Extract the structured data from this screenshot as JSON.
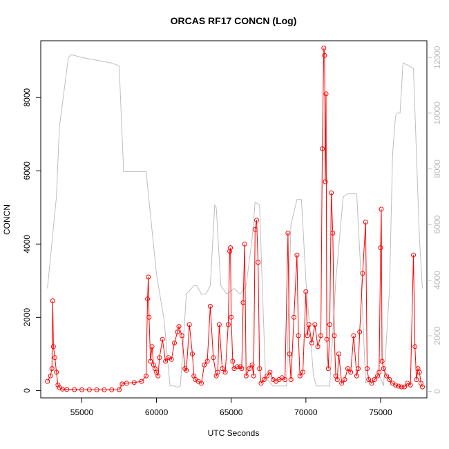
{
  "chart_data": {
    "type": "line",
    "title": "ORCAS RF17 CONCN (Log)",
    "xlabel": "UTC Seconds",
    "ylabel": "CONCN",
    "xlim": [
      52250,
      78100
    ],
    "ylim_left": [
      -200,
      9550
    ],
    "ylim_right": [
      -230,
      12600
    ],
    "x_ticks": [
      55000,
      60000,
      65000,
      70000,
      75000
    ],
    "x_tick_labels": [
      "55000",
      "60000",
      "65000",
      "70000",
      "75000"
    ],
    "y_ticks": [
      0,
      2000,
      4000,
      6000,
      8000
    ],
    "y_tick_labels": [
      "0",
      "2000",
      "4000",
      "6000",
      "8000"
    ],
    "y2_ticks": [
      0,
      2000,
      4000,
      6000,
      8000,
      10000,
      12000
    ],
    "y2_tick_labels": [
      "0",
      "2000",
      "4000",
      "6000",
      "8000",
      "10000",
      "12000"
    ],
    "colors": {
      "concn": "#ff0000",
      "altitude": "#bebebe",
      "axes": "#000000"
    },
    "series": [
      {
        "axis": "left",
        "style": "line+circle",
        "x": [
          52700,
          52900,
          53000,
          53050,
          53100,
          53200,
          53300,
          53400,
          53500,
          53700,
          54000,
          54500,
          55000,
          55500,
          56000,
          56500,
          57000,
          57500,
          57700,
          58000,
          58500,
          59000,
          59300,
          59400,
          59450,
          59500,
          59600,
          59700,
          59800,
          59900,
          60000,
          60100,
          60200,
          60400,
          60600,
          60800,
          61000,
          61200,
          61400,
          61500,
          61700,
          61900,
          62000,
          62200,
          62400,
          62500,
          62600,
          62800,
          63000,
          63200,
          63400,
          63600,
          63800,
          64000,
          64100,
          64200,
          64400,
          64600,
          64800,
          64900,
          64950,
          65000,
          65100,
          65200,
          65400,
          65600,
          65700,
          65800,
          65900,
          66000,
          66200,
          66400,
          66500,
          66600,
          66700,
          66800,
          66900,
          67000,
          67200,
          67400,
          67600,
          67800,
          68000,
          68200,
          68400,
          68600,
          68800,
          68900,
          69000,
          69200,
          69400,
          69500,
          69600,
          69800,
          70000,
          70100,
          70200,
          70400,
          70600,
          70800,
          71000,
          71100,
          71200,
          71250,
          71300,
          71350,
          71400,
          71500,
          71600,
          71700,
          71800,
          71900,
          72000,
          72100,
          72200,
          72400,
          72600,
          72800,
          73000,
          73200,
          73400,
          73500,
          73600,
          73800,
          74000,
          74100,
          74200,
          74400,
          74600,
          74800,
          74900,
          75000,
          75050,
          75100,
          75200,
          75400,
          75600,
          75800,
          76000,
          76200,
          76400,
          76600,
          76800,
          77000,
          77200,
          77300,
          77400,
          77500,
          77600,
          77700,
          77800
        ],
        "y": [
          250,
          400,
          600,
          2450,
          1200,
          900,
          500,
          150,
          80,
          40,
          30,
          25,
          20,
          20,
          20,
          20,
          20,
          25,
          180,
          200,
          220,
          250,
          400,
          2500,
          3100,
          2000,
          800,
          1200,
          700,
          600,
          500,
          400,
          900,
          1400,
          800,
          900,
          850,
          1300,
          1600,
          1750,
          1500,
          600,
          550,
          1800,
          1000,
          400,
          300,
          250,
          200,
          700,
          800,
          2300,
          900,
          400,
          500,
          1800,
          600,
          500,
          1800,
          3800,
          3900,
          2000,
          800,
          600,
          650,
          650,
          600,
          2400,
          4000,
          400,
          600,
          700,
          400,
          4400,
          4650,
          3500,
          600,
          200,
          300,
          400,
          500,
          300,
          250,
          300,
          350,
          300,
          4300,
          1000,
          300,
          2000,
          3700,
          1500,
          400,
          500,
          2700,
          1500,
          1800,
          1300,
          1800,
          1200,
          1500,
          6600,
          9350,
          9150,
          5700,
          8100,
          1400,
          600,
          1800,
          5400,
          4300,
          1500,
          400,
          300,
          1000,
          200,
          300,
          600,
          500,
          1500,
          400,
          600,
          1600,
          3200,
          4600,
          600,
          300,
          200,
          300,
          400,
          500,
          3900,
          4950,
          800,
          600,
          400,
          300,
          200,
          150,
          120,
          100,
          100,
          200,
          150,
          3700,
          1200,
          300,
          600,
          500,
          200,
          100
        ],
        "series_name": ""
      },
      {
        "axis": "right",
        "style": "line",
        "x": [
          52700,
          53300,
          53500,
          54100,
          54300,
          55000,
          56000,
          57000,
          57500,
          57800,
          58000,
          59000,
          59300,
          60000,
          60500,
          60900,
          61200,
          61400,
          61600,
          62000,
          62500,
          62700,
          63000,
          63300,
          63600,
          63900,
          64000,
          64300,
          64700,
          65200,
          65600,
          66000,
          66400,
          66600,
          66900,
          67100,
          67300,
          67800,
          68000,
          68400,
          68700,
          69000,
          69400,
          69700,
          70000,
          70500,
          70700,
          71000,
          71300,
          71600,
          72000,
          72500,
          72800,
          73200,
          73400,
          73700,
          74000,
          74500,
          74900,
          75200,
          75600,
          75800,
          76000,
          76100,
          76300,
          76500,
          76900,
          77200,
          77600,
          77800
        ],
        "y": [
          3700,
          7000,
          9500,
          12000,
          12100,
          12000,
          11900,
          11800,
          11700,
          7900,
          7900,
          7900,
          7900,
          4200,
          2600,
          200,
          200,
          150,
          200,
          3500,
          3800,
          3800,
          3500,
          3500,
          3800,
          6700,
          6600,
          3800,
          3500,
          3700,
          3500,
          3800,
          5500,
          6800,
          6700,
          3500,
          500,
          200,
          200,
          200,
          200,
          6000,
          6900,
          6900,
          4000,
          600,
          200,
          200,
          200,
          200,
          4000,
          7000,
          7100,
          7100,
          7100,
          4000,
          300,
          500,
          600,
          200,
          3700,
          8500,
          9900,
          10000,
          10000,
          11800,
          11700,
          11600,
          5500,
          3700
        ],
        "series_name": ""
      }
    ]
  }
}
